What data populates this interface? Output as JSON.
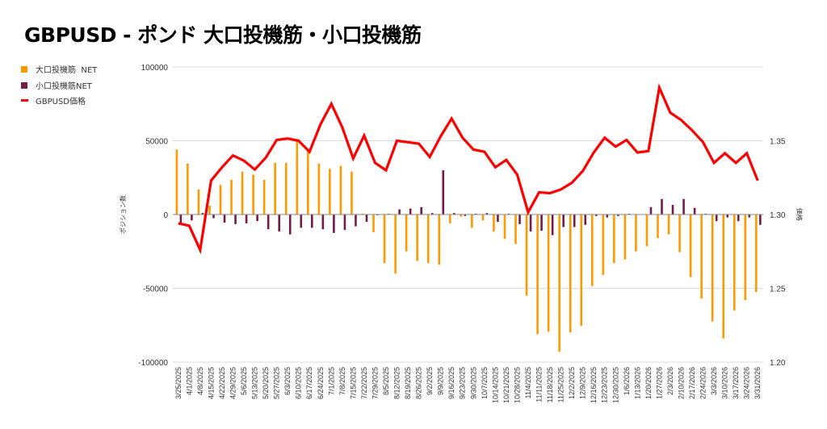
{
  "chart_data": {
    "type": "bar+line",
    "title": "GBPUSD - ポンド 大口投機筋・小口投機筋",
    "ylabel": "ポジション数",
    "y2label": "価格",
    "ylim": [
      -100000,
      100000
    ],
    "y2lim": [
      1.2,
      1.4
    ],
    "yticks": [
      "100000",
      "50000",
      "0",
      "-50000",
      "-100000"
    ],
    "y2ticks": [
      "1.35",
      "1.30",
      "1.25",
      "1.20"
    ],
    "grid": true,
    "legend_position": "left",
    "categories": [
      "3/25/2025",
      "4/1/2025",
      "4/8/2025",
      "4/15/2025",
      "4/22/2025",
      "4/29/2025",
      "5/6/2025",
      "5/13/2025",
      "5/20/2025",
      "5/27/2025",
      "6/3/2025",
      "6/10/2025",
      "6/17/2025",
      "6/24/2025",
      "7/1/2025",
      "7/8/2025",
      "7/15/2025",
      "7/22/2025",
      "7/29/2025",
      "8/5/2025",
      "8/12/2025",
      "8/19/2025",
      "8/26/2025",
      "9/2/2025",
      "9/9/2025",
      "9/16/2025",
      "9/23/2025",
      "9/30/2025",
      "10/7/2025",
      "10/14/2025",
      "10/21/2025",
      "10/28/2025",
      "11/4/2025",
      "11/11/2025",
      "11/18/2025",
      "11/25/2025",
      "12/2/2025",
      "12/9/2025",
      "12/16/2025",
      "12/23/2025",
      "12/30/2025",
      "1/6/2026",
      "1/13/2026",
      "1/20/2026",
      "1/27/2026",
      "2/3/2026",
      "2/10/2026",
      "2/17/2026",
      "2/24/2026",
      "3/3/2026",
      "3/10/2026",
      "3/17/2026",
      "3/24/2026",
      "3/31/2026"
    ],
    "series": [
      {
        "name": "大口投機筋  NET",
        "type": "bar",
        "axis": "left",
        "color": "#FF9900",
        "values": [
          44000,
          34500,
          17000,
          6000,
          20000,
          23500,
          29000,
          27000,
          23500,
          35000,
          35000,
          51000,
          43000,
          34500,
          31000,
          33000,
          29000,
          500,
          -12000,
          -33000,
          -40000,
          -25000,
          -31500,
          -33000,
          -34000,
          -6000,
          -1500,
          -9000,
          -4000,
          -11500,
          -16500,
          -20000,
          -55000,
          -81000,
          -79500,
          -93000,
          -80000,
          -75500,
          -48500,
          -41000,
          -33000,
          -30500,
          -25000,
          -21500,
          -16000,
          -13500,
          -25500,
          -42500,
          -57000,
          -72500,
          -84000,
          -65000,
          -58000,
          -52500
        ]
      },
      {
        "name": "小口投機筋NET",
        "type": "bar",
        "axis": "left",
        "color": "#741B47",
        "values": [
          -6000,
          -4000,
          1000,
          -2500,
          -5500,
          -6500,
          -6000,
          -4500,
          -10000,
          -11500,
          -13500,
          -9000,
          -9000,
          -10000,
          -12500,
          -10500,
          -8000,
          -5000,
          -500,
          500,
          3500,
          4000,
          5000,
          1000,
          30000,
          1000,
          -1000,
          500,
          1000,
          -5000,
          500,
          -6500,
          -11500,
          -11000,
          -14000,
          -8500,
          -8500,
          -7000,
          -1000,
          -2000,
          -1000,
          500,
          0,
          5000,
          10500,
          6500,
          10500,
          4500,
          500,
          -4500,
          -2000,
          -4500,
          -2000,
          -7000
        ]
      },
      {
        "name": "GBPUSD価格",
        "type": "line",
        "axis": "right",
        "color": "#FF0000",
        "values": [
          1.294,
          1.2924,
          1.276,
          1.323,
          1.332,
          1.34,
          1.3365,
          1.3305,
          1.3385,
          1.3505,
          1.3515,
          1.35,
          1.3425,
          1.361,
          1.375,
          1.359,
          1.338,
          1.3535,
          1.335,
          1.33,
          1.35,
          1.349,
          1.348,
          1.339,
          1.353,
          1.365,
          1.352,
          1.344,
          1.3425,
          1.332,
          1.337,
          1.327,
          1.3015,
          1.315,
          1.3145,
          1.317,
          1.3215,
          1.3295,
          1.342,
          1.352,
          1.346,
          1.3505,
          1.342,
          1.343,
          1.386,
          1.369,
          1.364,
          1.357,
          1.349,
          1.335,
          1.3415,
          1.335,
          1.3415,
          1.323
        ]
      }
    ]
  }
}
